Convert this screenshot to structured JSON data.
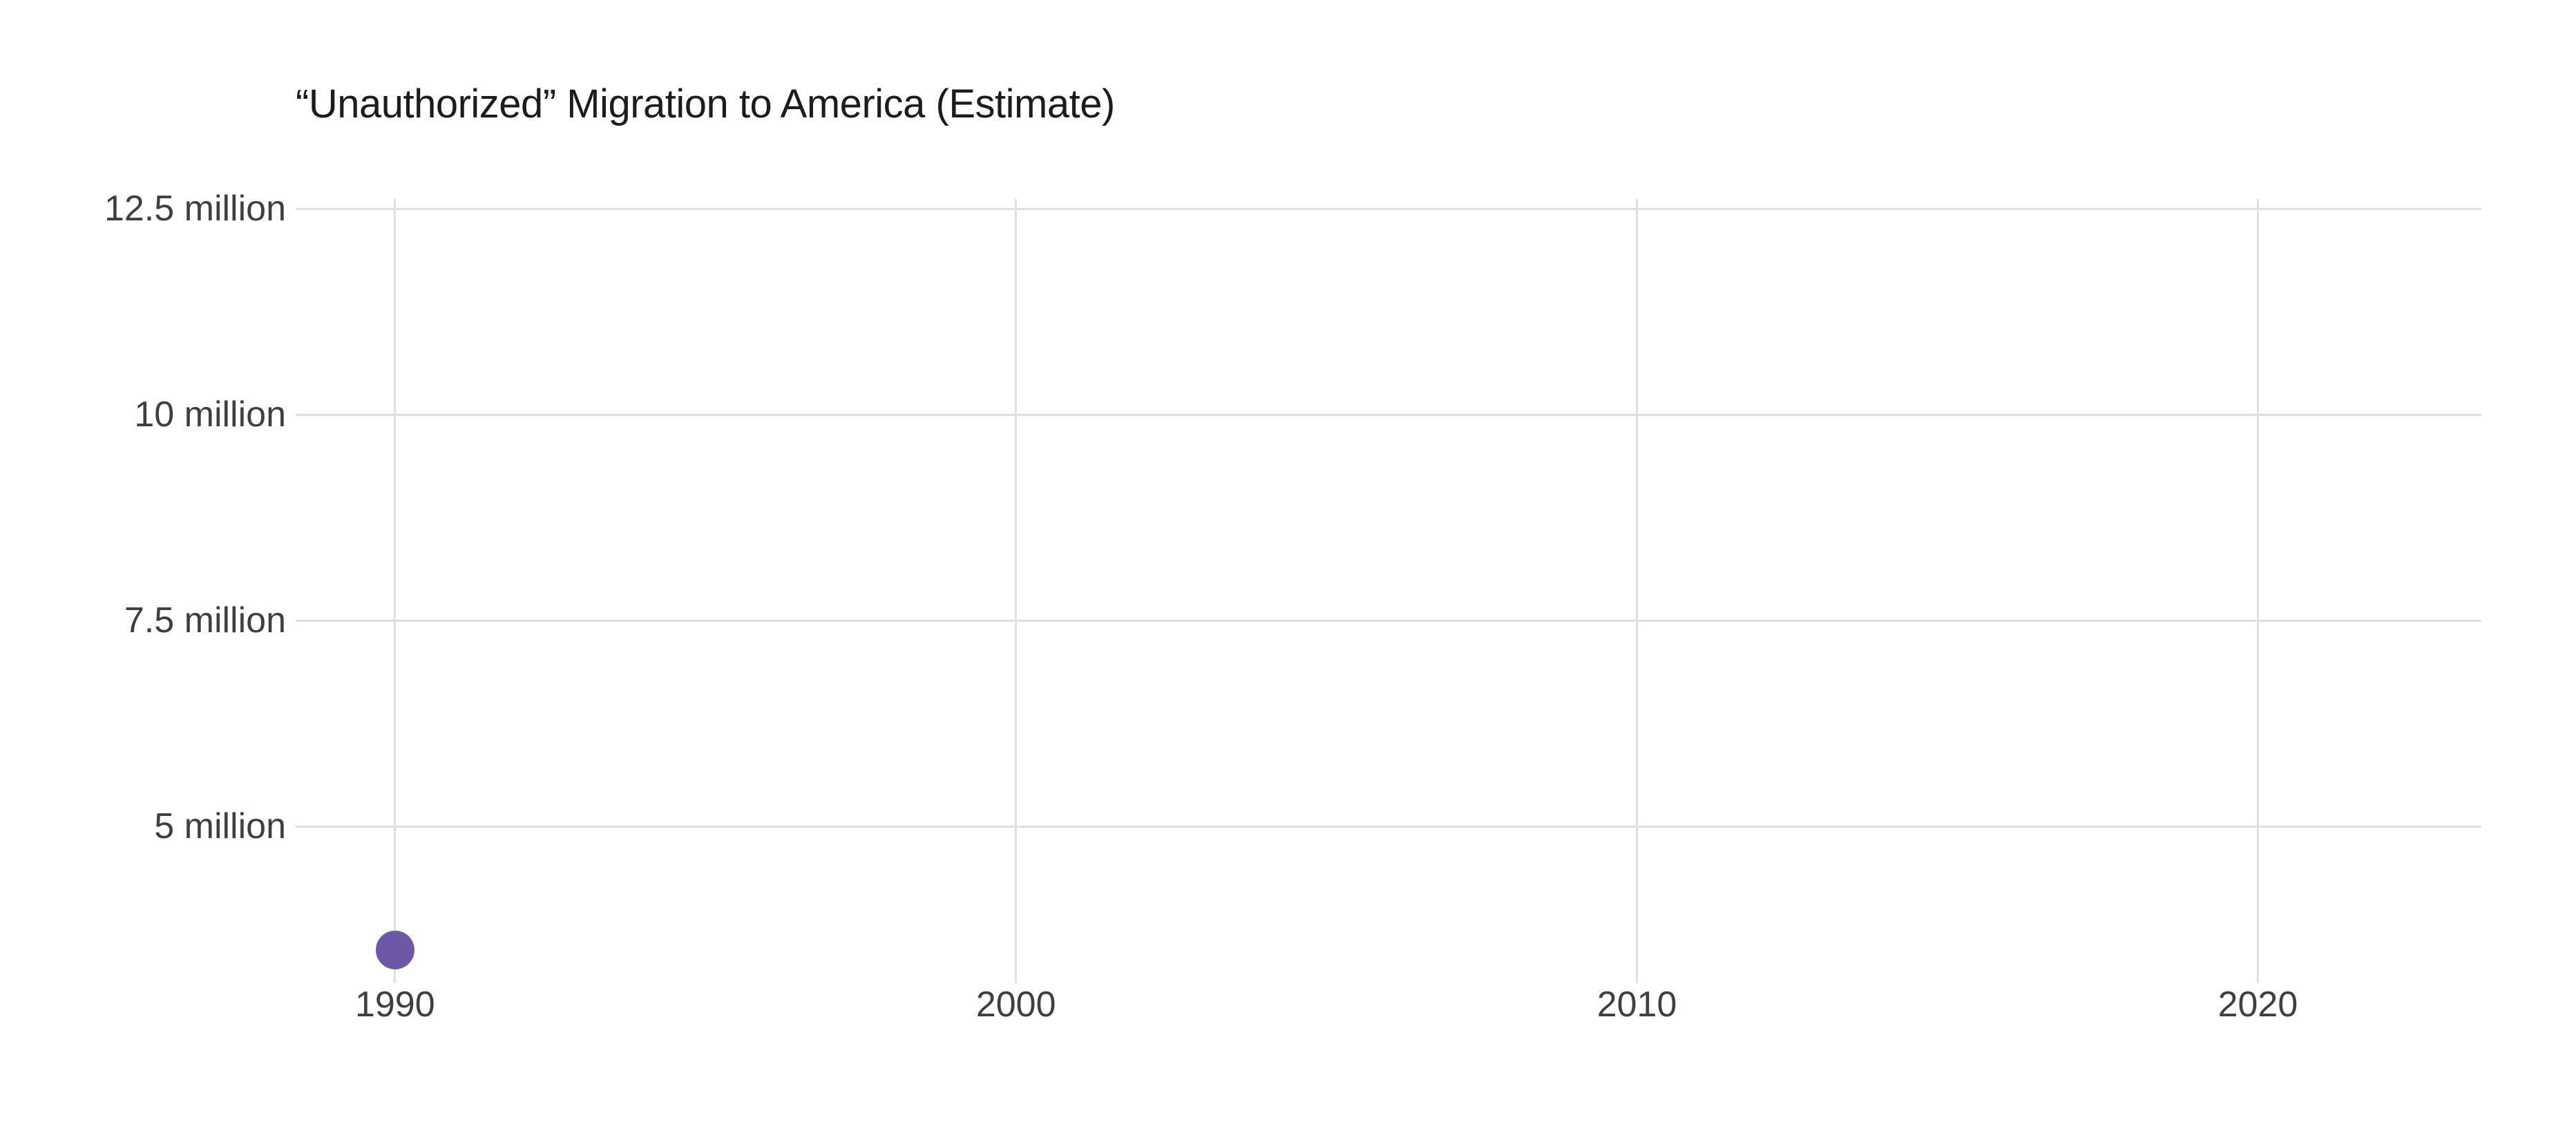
{
  "page": {
    "background": "#ffffff"
  },
  "chart": {
    "title": "“Unauthorized” Migration to America (Estimate)"
  },
  "colors": {
    "background": "#ffffff",
    "gridline": "#e0e0e0",
    "title_text": "#1c1c1c",
    "axis_text": "#3f3f3f",
    "point": "#6d58a8"
  },
  "chart_data": {
    "type": "scatter",
    "title": "“Unauthorized” Migration to America (Estimate)",
    "xlabel": "",
    "ylabel": "",
    "points": [
      {
        "year": 1990,
        "value_millions": 3.5
      }
    ],
    "x_ticks": [
      {
        "value": 1990,
        "label": "1990"
      },
      {
        "value": 2000,
        "label": "2000"
      },
      {
        "value": 2010,
        "label": "2010"
      },
      {
        "value": 2020,
        "label": "2020"
      }
    ],
    "y_ticks": [
      {
        "value": 12.5,
        "label": "12.5 million"
      },
      {
        "value": 10,
        "label": "10 million"
      },
      {
        "value": 7.5,
        "label": "7.5 million"
      },
      {
        "value": 5,
        "label": "5 million"
      }
    ],
    "xlim": [
      1988.4,
      2023.6
    ],
    "ylim_millions": [
      3.1,
      12.62
    ],
    "grid": true,
    "legend_position": "none",
    "point_color": "#6d58a8"
  }
}
